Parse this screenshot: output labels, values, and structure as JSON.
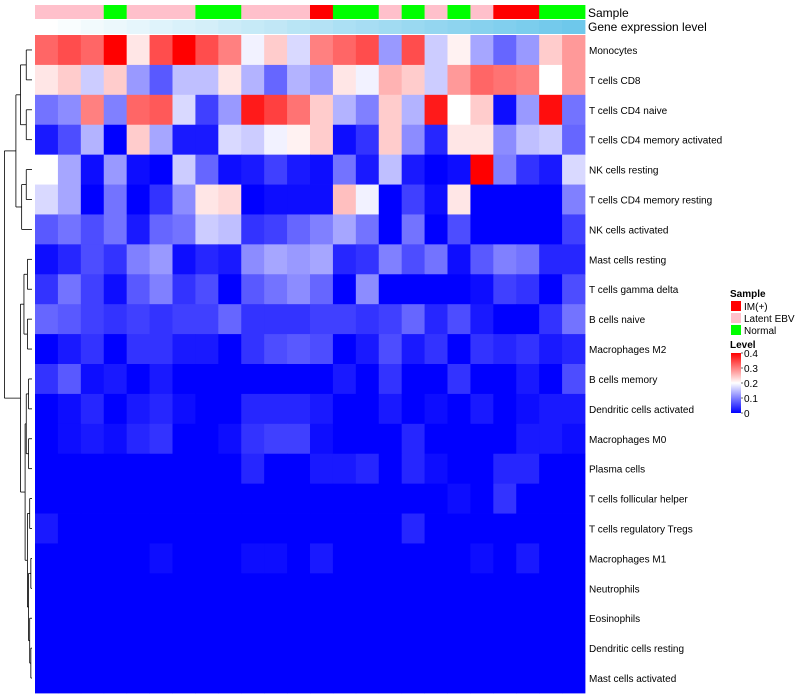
{
  "colors": {
    "sample": {
      "IM(+)": "#ff0000",
      "Latent EBV": "#ffc0cb",
      "Normal": "#00ff00"
    },
    "level_scale": [
      "#0000ff",
      "#ffffff",
      "#ff0000"
    ]
  },
  "annotations": {
    "sample_label": "Sample",
    "gene_label": "Gene expression level"
  },
  "legend": {
    "sample_title": "Sample",
    "sample_items": [
      "IM(+)",
      "Latent EBV",
      "Normal"
    ],
    "level_title": "Level",
    "level_ticks": [
      "0",
      "0.1",
      "0.2",
      "0.3",
      "0.4"
    ]
  },
  "chart_data": {
    "type": "heatmap",
    "title": "",
    "row_dendrogram": true,
    "columns": 24,
    "sample_groups": [
      "Latent EBV",
      "Latent EBV",
      "Latent EBV",
      "Normal",
      "Latent EBV",
      "Latent EBV",
      "Latent EBV",
      "Normal",
      "Normal",
      "Latent EBV",
      "Latent EBV",
      "Latent EBV",
      "IM(+)",
      "Normal",
      "Normal",
      "Latent EBV",
      "Normal",
      "Latent EBV",
      "Normal",
      "Latent EBV",
      "IM(+)",
      "IM(+)",
      "Normal",
      "Normal"
    ],
    "gene_expression_level": [
      0.0,
      0.04,
      0.09,
      0.13,
      0.17,
      0.22,
      0.26,
      0.3,
      0.35,
      0.39,
      0.43,
      0.48,
      0.52,
      0.57,
      0.61,
      0.65,
      0.7,
      0.74,
      0.78,
      0.83,
      0.87,
      0.91,
      0.96,
      1.0
    ],
    "rows": [
      "Monocytes",
      "T cells CD8",
      "T cells CD4 naive",
      "T cells CD4 memory activated",
      "NK cells resting",
      "T cells CD4 memory resting",
      "NK cells activated",
      "Mast cells resting",
      "T cells gamma delta",
      "B cells naive",
      "Macrophages M2",
      "B cells memory",
      "Dendritic cells activated",
      "Macrophages M0",
      "Plasma cells",
      "T cells follicular helper",
      "T cells regulatory  Tregs",
      "Macrophages M1",
      "Neutrophils",
      "Eosinophils",
      "Dendritic cells resting",
      "Mast cells activated"
    ],
    "level_range": [
      0,
      0.4
    ],
    "values": [
      [
        0.32,
        0.34,
        0.32,
        0.4,
        0.22,
        0.34,
        0.4,
        0.34,
        0.3,
        0.19,
        0.24,
        0.17,
        0.3,
        0.32,
        0.34,
        0.12,
        0.34,
        0.16,
        0.21,
        0.13,
        0.08,
        0.12,
        0.24,
        0.28
      ],
      [
        0.22,
        0.24,
        0.16,
        0.24,
        0.12,
        0.07,
        0.15,
        0.15,
        0.22,
        0.14,
        0.08,
        0.14,
        0.12,
        0.22,
        0.19,
        0.26,
        0.24,
        0.16,
        0.28,
        0.32,
        0.31,
        0.3,
        0.2,
        0.28
      ],
      [
        0.09,
        0.11,
        0.3,
        0.1,
        0.32,
        0.33,
        0.17,
        0.05,
        0.12,
        0.38,
        0.35,
        0.31,
        0.24,
        0.14,
        0.1,
        0.24,
        0.14,
        0.38,
        0.2,
        0.24,
        0.01,
        0.12,
        0.39,
        0.09
      ],
      [
        0.02,
        0.06,
        0.14,
        0.0,
        0.24,
        0.13,
        0.02,
        0.02,
        0.17,
        0.16,
        0.19,
        0.21,
        0.24,
        0.01,
        0.04,
        0.24,
        0.11,
        0.03,
        0.22,
        0.22,
        0.11,
        0.15,
        0.16,
        0.08
      ],
      [
        0.2,
        0.13,
        0.01,
        0.12,
        0.01,
        0.0,
        0.16,
        0.08,
        0.01,
        0.02,
        0.05,
        0.02,
        0.01,
        0.09,
        0.02,
        0.15,
        0.02,
        0.0,
        0.01,
        0.4,
        0.1,
        0.04,
        0.02,
        0.17
      ],
      [
        0.17,
        0.13,
        0.0,
        0.09,
        0.0,
        0.04,
        0.11,
        0.22,
        0.23,
        0.0,
        0.01,
        0.01,
        0.01,
        0.25,
        0.19,
        0.0,
        0.05,
        0.01,
        0.22,
        0.0,
        0.0,
        0.0,
        0.0,
        0.1
      ],
      [
        0.07,
        0.09,
        0.06,
        0.09,
        0.02,
        0.08,
        0.09,
        0.16,
        0.15,
        0.04,
        0.05,
        0.08,
        0.1,
        0.13,
        0.09,
        0.0,
        0.09,
        0.0,
        0.06,
        0.0,
        0.0,
        0.0,
        0.0,
        0.05
      ],
      [
        0.01,
        0.03,
        0.06,
        0.04,
        0.1,
        0.12,
        0.01,
        0.03,
        0.02,
        0.11,
        0.13,
        0.12,
        0.13,
        0.03,
        0.04,
        0.1,
        0.06,
        0.09,
        0.01,
        0.07,
        0.1,
        0.09,
        0.03,
        0.03
      ],
      [
        0.04,
        0.09,
        0.05,
        0.01,
        0.07,
        0.1,
        0.04,
        0.06,
        0.0,
        0.07,
        0.09,
        0.11,
        0.08,
        0.0,
        0.11,
        0.0,
        0.0,
        0.0,
        0.0,
        0.01,
        0.05,
        0.04,
        0.0,
        0.06
      ],
      [
        0.08,
        0.07,
        0.05,
        0.04,
        0.05,
        0.04,
        0.05,
        0.05,
        0.08,
        0.04,
        0.04,
        0.04,
        0.05,
        0.05,
        0.04,
        0.05,
        0.08,
        0.03,
        0.06,
        0.02,
        0.0,
        0.0,
        0.04,
        0.09
      ],
      [
        0.0,
        0.02,
        0.04,
        0.0,
        0.04,
        0.04,
        0.02,
        0.02,
        0.0,
        0.04,
        0.06,
        0.07,
        0.06,
        0.0,
        0.02,
        0.06,
        0.02,
        0.04,
        0.0,
        0.04,
        0.03,
        0.04,
        0.02,
        0.03
      ],
      [
        0.04,
        0.07,
        0.01,
        0.02,
        0.0,
        0.02,
        0.0,
        0.0,
        0.0,
        0.0,
        0.0,
        0.0,
        0.0,
        0.02,
        0.0,
        0.04,
        0.0,
        0.0,
        0.04,
        0.0,
        0.0,
        0.02,
        0.0,
        0.06
      ],
      [
        0.0,
        0.01,
        0.03,
        0.0,
        0.02,
        0.03,
        0.01,
        0.0,
        0.0,
        0.03,
        0.03,
        0.03,
        0.02,
        0.0,
        0.0,
        0.02,
        0.0,
        0.01,
        0.0,
        0.02,
        0.0,
        0.01,
        0.02,
        0.02
      ],
      [
        0.0,
        0.01,
        0.02,
        0.01,
        0.03,
        0.04,
        0.0,
        0.0,
        0.01,
        0.04,
        0.05,
        0.05,
        0.01,
        0.0,
        0.0,
        0.0,
        0.03,
        0.0,
        0.0,
        0.0,
        0.0,
        0.02,
        0.02,
        0.01
      ],
      [
        0.0,
        0.0,
        0.0,
        0.0,
        0.0,
        0.0,
        0.0,
        0.0,
        0.0,
        0.03,
        0.0,
        0.0,
        0.02,
        0.02,
        0.03,
        0.0,
        0.03,
        0.01,
        0.0,
        0.0,
        0.03,
        0.03,
        0.0,
        0.0
      ],
      [
        0.0,
        0.0,
        0.0,
        0.0,
        0.0,
        0.0,
        0.0,
        0.0,
        0.0,
        0.0,
        0.0,
        0.0,
        0.0,
        0.0,
        0.0,
        0.0,
        0.0,
        0.0,
        0.01,
        0.0,
        0.04,
        0.0,
        0.0,
        0.0
      ],
      [
        0.02,
        0.0,
        0.0,
        0.0,
        0.0,
        0.0,
        0.0,
        0.0,
        0.0,
        0.0,
        0.0,
        0.0,
        0.0,
        0.0,
        0.0,
        0.0,
        0.03,
        0.0,
        0.0,
        0.0,
        0.0,
        0.0,
        0.0,
        0.0
      ],
      [
        0.0,
        0.0,
        0.0,
        0.0,
        0.0,
        0.01,
        0.0,
        0.0,
        0.0,
        0.01,
        0.01,
        0.0,
        0.02,
        0.0,
        0.0,
        0.0,
        0.0,
        0.0,
        0.0,
        0.01,
        0.0,
        0.02,
        0.0,
        0.0
      ],
      [
        0.0,
        0.0,
        0.0,
        0.0,
        0.0,
        0.0,
        0.0,
        0.0,
        0.0,
        0.0,
        0.0,
        0.0,
        0.0,
        0.0,
        0.0,
        0.0,
        0.0,
        0.0,
        0.0,
        0.0,
        0.0,
        0.0,
        0.0,
        0.0
      ],
      [
        0.0,
        0.0,
        0.0,
        0.0,
        0.0,
        0.0,
        0.0,
        0.0,
        0.0,
        0.0,
        0.0,
        0.0,
        0.0,
        0.0,
        0.0,
        0.0,
        0.0,
        0.0,
        0.0,
        0.0,
        0.0,
        0.0,
        0.0,
        0.0
      ],
      [
        0.0,
        0.0,
        0.0,
        0.0,
        0.0,
        0.0,
        0.0,
        0.0,
        0.0,
        0.0,
        0.0,
        0.0,
        0.0,
        0.0,
        0.0,
        0.0,
        0.0,
        0.0,
        0.0,
        0.0,
        0.0,
        0.0,
        0.0,
        0.0
      ],
      [
        0.0,
        0.0,
        0.0,
        0.0,
        0.0,
        0.0,
        0.0,
        0.0,
        0.0,
        0.0,
        0.0,
        0.0,
        0.0,
        0.0,
        0.0,
        0.0,
        0.0,
        0.0,
        0.0,
        0.0,
        0.0,
        0.0,
        0.0,
        0.0
      ]
    ]
  }
}
